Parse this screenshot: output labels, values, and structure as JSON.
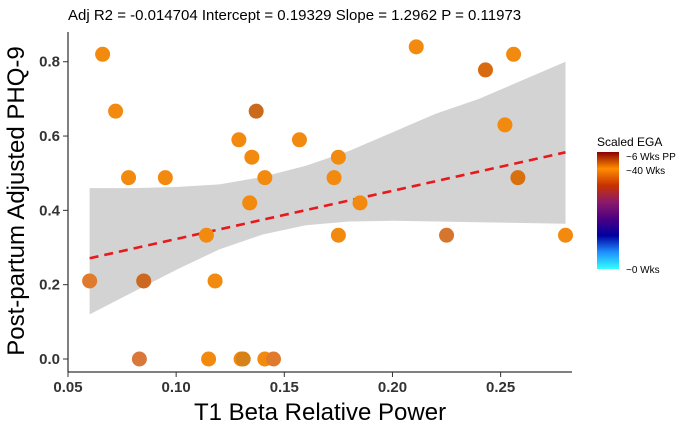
{
  "chart_data": {
    "type": "scatter",
    "title": "Adj R2 =  -0.014704 Intercept = 0.19329  Slope = 1.2962  P = 0.11973",
    "xlabel": "T1 Beta Relative Power",
    "ylabel": "Post-partum Adjusted PHQ-9",
    "xlim": [
      0.05,
      0.283
    ],
    "ylim": [
      -0.035,
      0.88
    ],
    "x_ticks": [
      0.05,
      0.1,
      0.15,
      0.2,
      0.25
    ],
    "x_tick_labels": [
      "0.05",
      "0.10",
      "0.15",
      "0.20",
      "0.25"
    ],
    "y_ticks": [
      0.0,
      0.2,
      0.4,
      0.6,
      0.8
    ],
    "y_tick_labels": [
      "0.0",
      "0.2",
      "0.4",
      "0.6",
      "0.8"
    ],
    "grid": false,
    "fit_line": {
      "intercept": 0.19329,
      "slope": 1.2962,
      "x_range": [
        0.06,
        0.28
      ],
      "color": "#e8191b",
      "style": "dashed"
    },
    "confidence_band": {
      "color": "#d3d3d3",
      "x": [
        0.06,
        0.08,
        0.1,
        0.12,
        0.14,
        0.16,
        0.18,
        0.2,
        0.22,
        0.24,
        0.26,
        0.28
      ],
      "lower": [
        0.12,
        0.18,
        0.24,
        0.295,
        0.335,
        0.36,
        0.37,
        0.372,
        0.37,
        0.368,
        0.366,
        0.364
      ],
      "upper": [
        0.46,
        0.46,
        0.463,
        0.47,
        0.49,
        0.52,
        0.56,
        0.61,
        0.66,
        0.7,
        0.75,
        0.8
      ]
    },
    "points": [
      {
        "x": 0.06,
        "y": 0.21,
        "color": "#e07a2c"
      },
      {
        "x": 0.066,
        "y": 0.82,
        "color": "#f28a10"
      },
      {
        "x": 0.072,
        "y": 0.667,
        "color": "#f28a10"
      },
      {
        "x": 0.078,
        "y": 0.488,
        "color": "#f28a10"
      },
      {
        "x": 0.083,
        "y": 0.0,
        "color": "#d8783a"
      },
      {
        "x": 0.085,
        "y": 0.21,
        "color": "#cc6820"
      },
      {
        "x": 0.095,
        "y": 0.488,
        "color": "#f28a10"
      },
      {
        "x": 0.114,
        "y": 0.333,
        "color": "#f28a10"
      },
      {
        "x": 0.115,
        "y": 0.0,
        "color": "#f28a10"
      },
      {
        "x": 0.118,
        "y": 0.21,
        "color": "#f28a10"
      },
      {
        "x": 0.129,
        "y": 0.59,
        "color": "#f28a10"
      },
      {
        "x": 0.13,
        "y": 0.0,
        "color": "#f28a10"
      },
      {
        "x": 0.131,
        "y": 0.0,
        "color": "#d68218"
      },
      {
        "x": 0.134,
        "y": 0.42,
        "color": "#f28a10"
      },
      {
        "x": 0.135,
        "y": 0.543,
        "color": "#f28a10"
      },
      {
        "x": 0.137,
        "y": 0.667,
        "color": "#cc6a1c"
      },
      {
        "x": 0.141,
        "y": 0.488,
        "color": "#f28a10"
      },
      {
        "x": 0.141,
        "y": 0.0,
        "color": "#f28a10"
      },
      {
        "x": 0.145,
        "y": 0.0,
        "color": "#e07a2c"
      },
      {
        "x": 0.157,
        "y": 0.59,
        "color": "#f28a10"
      },
      {
        "x": 0.173,
        "y": 0.488,
        "color": "#f28a10"
      },
      {
        "x": 0.175,
        "y": 0.333,
        "color": "#f28a10"
      },
      {
        "x": 0.175,
        "y": 0.543,
        "color": "#f28a10"
      },
      {
        "x": 0.185,
        "y": 0.42,
        "color": "#f28a10"
      },
      {
        "x": 0.211,
        "y": 0.84,
        "color": "#f28a10"
      },
      {
        "x": 0.225,
        "y": 0.333,
        "color": "#d6752c"
      },
      {
        "x": 0.243,
        "y": 0.778,
        "color": "#d86a10"
      },
      {
        "x": 0.252,
        "y": 0.63,
        "color": "#f28a10"
      },
      {
        "x": 0.256,
        "y": 0.82,
        "color": "#f28a10"
      },
      {
        "x": 0.258,
        "y": 0.488,
        "color": "#d8700e"
      },
      {
        "x": 0.28,
        "y": 0.333,
        "color": "#f28a10"
      }
    ],
    "legend": {
      "title": "Scaled EGA",
      "placement": "right",
      "labels": [
        "~6 Wks PP",
        "~40 Wks",
        "~0 Wks"
      ],
      "gradient_colors": [
        "#33ffff",
        "#1e90ff",
        "#0000a0",
        "#4b0082",
        "#8b1a6b",
        "#c83200",
        "#ff8c00",
        "#8b0000"
      ]
    }
  }
}
